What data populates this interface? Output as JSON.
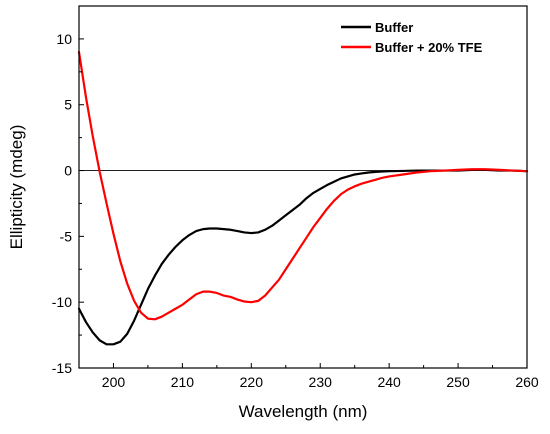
{
  "chart_data": {
    "type": "line",
    "title": "",
    "xlabel": "Wavelength (nm)",
    "ylabel": "Ellipticity (mdeg)",
    "xlim": [
      195,
      260
    ],
    "ylim": [
      -15,
      12.5
    ],
    "xticks": [
      200,
      210,
      220,
      230,
      240,
      250,
      260
    ],
    "yticks": [
      -15,
      -10,
      -5,
      0,
      5,
      10
    ],
    "xtick_labels": [
      "200",
      "210",
      "220",
      "230",
      "240",
      "250",
      "260"
    ],
    "ytick_labels": [
      "-15",
      "-10",
      "-5",
      "0",
      "5",
      "10"
    ],
    "reference_line_y": 0,
    "grid": false,
    "legend_position": "top-right",
    "series": [
      {
        "name": "Buffer",
        "color": "#000000",
        "x": [
          195,
          196,
          197,
          198,
          199,
          200,
          201,
          202,
          203,
          204,
          205,
          206,
          207,
          208,
          209,
          210,
          211,
          212,
          213,
          214,
          215,
          216,
          217,
          218,
          219,
          220,
          221,
          222,
          223,
          224,
          225,
          226,
          227,
          228,
          229,
          230,
          231,
          232,
          233,
          234,
          235,
          236,
          237,
          238,
          239,
          240,
          242,
          244,
          246,
          248,
          250,
          252,
          254,
          256,
          258,
          260
        ],
        "y": [
          -10.5,
          -11.5,
          -12.3,
          -12.9,
          -13.2,
          -13.2,
          -13.0,
          -12.4,
          -11.4,
          -10.2,
          -9.0,
          -8.0,
          -7.1,
          -6.4,
          -5.8,
          -5.3,
          -4.9,
          -4.6,
          -4.45,
          -4.4,
          -4.4,
          -4.45,
          -4.5,
          -4.6,
          -4.7,
          -4.75,
          -4.7,
          -4.5,
          -4.2,
          -3.8,
          -3.4,
          -3.0,
          -2.6,
          -2.1,
          -1.7,
          -1.4,
          -1.1,
          -0.85,
          -0.6,
          -0.45,
          -0.3,
          -0.22,
          -0.15,
          -0.1,
          -0.07,
          -0.05,
          -0.03,
          0.0,
          0.0,
          0.0,
          0.0,
          0.05,
          0.05,
          0.0,
          0.0,
          -0.05
        ]
      },
      {
        "name": "Buffer + 20% TFE",
        "color": "#ff0000",
        "x": [
          195,
          196,
          197,
          198,
          199,
          200,
          201,
          202,
          203,
          204,
          205,
          206,
          207,
          208,
          209,
          210,
          211,
          212,
          213,
          214,
          215,
          216,
          217,
          218,
          219,
          220,
          221,
          222,
          223,
          224,
          225,
          226,
          227,
          228,
          229,
          230,
          231,
          232,
          233,
          234,
          235,
          236,
          237,
          238,
          239,
          240,
          242,
          244,
          246,
          248,
          250,
          252,
          254,
          256,
          258,
          260
        ],
        "y": [
          9.0,
          5.6,
          2.6,
          -0.1,
          -2.5,
          -4.8,
          -6.9,
          -8.6,
          -9.9,
          -10.8,
          -11.25,
          -11.3,
          -11.1,
          -10.8,
          -10.5,
          -10.2,
          -9.8,
          -9.4,
          -9.2,
          -9.2,
          -9.3,
          -9.5,
          -9.6,
          -9.8,
          -9.95,
          -10.0,
          -9.9,
          -9.5,
          -8.9,
          -8.3,
          -7.5,
          -6.7,
          -5.9,
          -5.1,
          -4.3,
          -3.6,
          -2.9,
          -2.3,
          -1.8,
          -1.45,
          -1.2,
          -1.0,
          -0.85,
          -0.7,
          -0.55,
          -0.45,
          -0.3,
          -0.15,
          -0.05,
          0.0,
          0.05,
          0.1,
          0.1,
          0.05,
          0.0,
          -0.05
        ]
      }
    ]
  }
}
